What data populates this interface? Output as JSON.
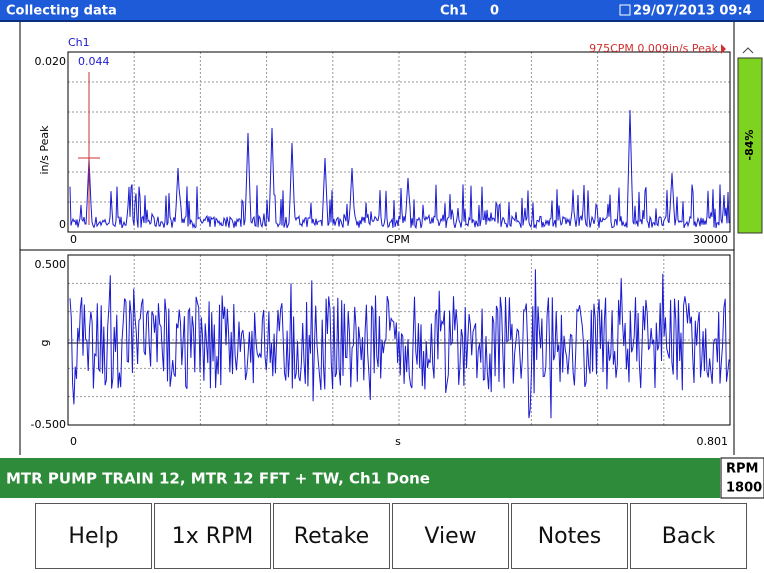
{
  "title_bar": {
    "status": "Collecting data",
    "channel": "Ch1",
    "channel_value": "0",
    "datetime": "29/07/2013 09:4"
  },
  "spectrum": {
    "channel": "Ch1",
    "y_max": "0.020",
    "cursor_value": "0.044",
    "cursor_readout": "975CPM 0.009in/s Peak",
    "y_label": "in/s Peak",
    "y_min": "0",
    "x_min": "0",
    "x_label": "CPM",
    "x_max": "30000",
    "level": "-84%"
  },
  "waveform": {
    "y_max": "0.500",
    "y_label": "g",
    "y_min": "-0.500",
    "x_min": "0",
    "x_label": "s",
    "x_max": "0.801"
  },
  "status": {
    "message": "MTR PUMP TRAIN 12, MTR 12 FFT + TW, Ch1 Done",
    "rpm_label": "RPM",
    "rpm_value": "1800"
  },
  "buttons": [
    "Help",
    "1x RPM",
    "Retake",
    "View",
    "Notes",
    "Back"
  ]
}
